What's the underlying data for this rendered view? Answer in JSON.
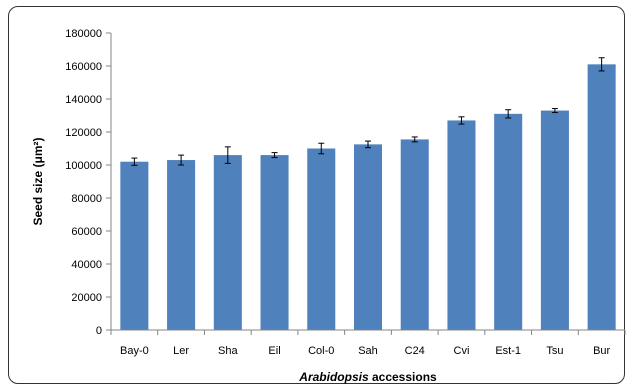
{
  "chart_data": {
    "type": "bar",
    "categories": [
      "Bay-0",
      "Ler",
      "Sha",
      "Eil",
      "Col-0",
      "Sah",
      "C24",
      "Cvi",
      "Est-1",
      "Tsu",
      "Bur"
    ],
    "values": [
      102000,
      103000,
      106000,
      106000,
      110000,
      112500,
      115500,
      127000,
      131000,
      133000,
      161000
    ],
    "errors": [
      2200,
      3000,
      5000,
      1500,
      3200,
      2000,
      1500,
      2200,
      2500,
      1200,
      4000
    ],
    "ylabel": "Seed size (μm²)",
    "xlabel_italic": "Arabidopsis",
    "xlabel_rest": " accessions",
    "ylim": [
      0,
      180000
    ],
    "yticks": [
      "0",
      "20000",
      "40000",
      "60000",
      "80000",
      "100000",
      "120000",
      "140000",
      "160000",
      "180000"
    ],
    "ytick_values": [
      0,
      20000,
      40000,
      60000,
      80000,
      100000,
      120000,
      140000,
      160000,
      180000
    ],
    "grid": false,
    "legend": "none",
    "bar_color": "#4f81bd"
  }
}
